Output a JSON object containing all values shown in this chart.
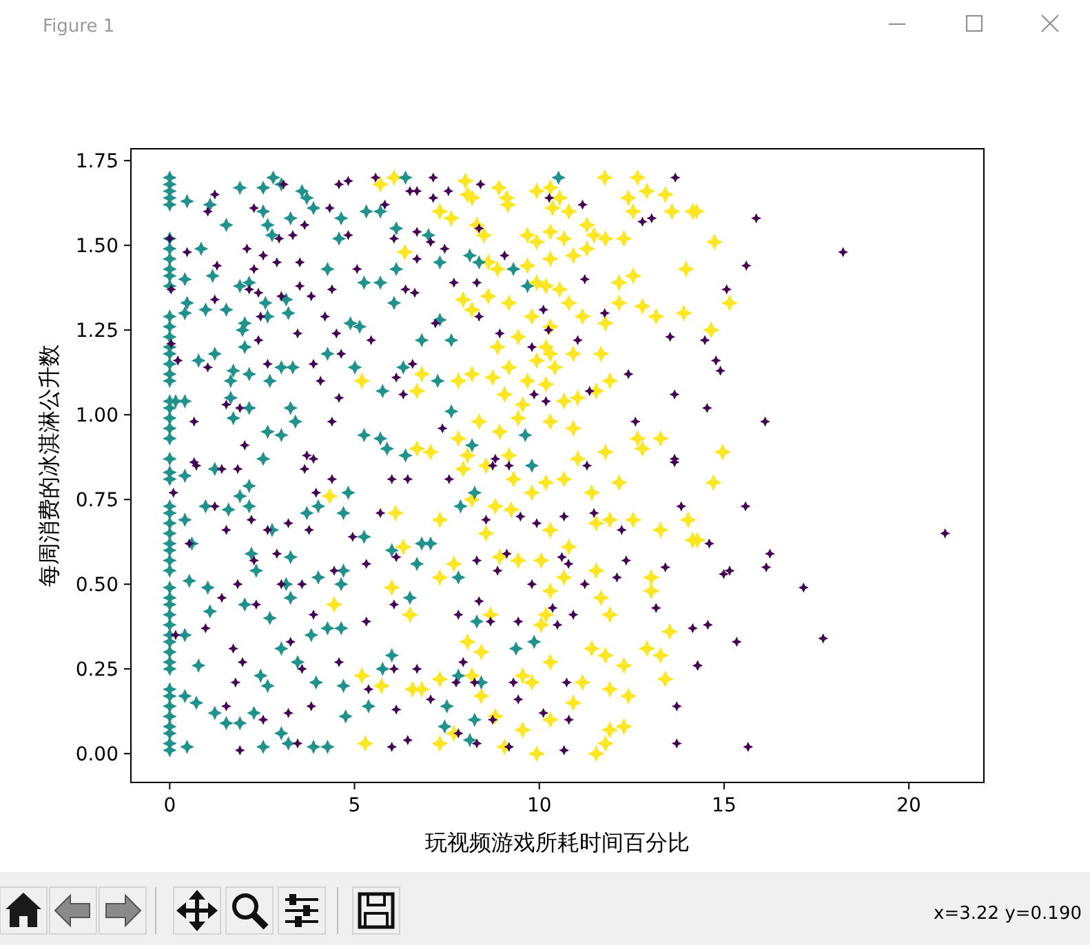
{
  "chart_data": {
    "type": "scatter",
    "xlabel": "玩视频游戏所耗时间百分比",
    "ylabel": "每周消费的冰淇淋公升数",
    "marker": "star",
    "annotations": [
      "Figure 1",
      "x=3.22 y=0.190"
    ],
    "xlim": [
      -1.05,
      22.03
    ],
    "ylim": [
      -0.085,
      1.785
    ],
    "xticks": [
      0,
      5,
      10,
      15,
      20
    ],
    "yticks": [
      {
        "value": 0,
        "label": "0.00"
      },
      {
        "value": 0.25,
        "label": "0.25"
      },
      {
        "value": 0.5,
        "label": "0.50"
      },
      {
        "value": 0.75,
        "label": "0.75"
      },
      {
        "value": 1,
        "label": "1.00"
      },
      {
        "value": 1.25,
        "label": "1.25"
      },
      {
        "value": 1.5,
        "label": "1.50"
      },
      {
        "value": 1.75,
        "label": "1.75"
      }
    ],
    "series": [
      {
        "color": "#fde725",
        "x": [
          8.0,
          8.06,
          8.91,
          9.12,
          9.15,
          9.93,
          10.3,
          10.55,
          10.36,
          10.8,
          11.77,
          12.66,
          12.91,
          12.41,
          13.41,
          13.59,
          14.15,
          12.54,
          7.31,
          7.62,
          8.18,
          8.31,
          8.5,
          9.68,
          9.93,
          10.3,
          10.67,
          11.29,
          11.48,
          11.79,
          12.29,
          11.29,
          10.92,
          10.3,
          9.68,
          8.87,
          8.62,
          13.97,
          12.16,
          12.54,
          9.93,
          10.18,
          8.62,
          9.18,
          7.94,
          8.18,
          10.55,
          10.8,
          11.17,
          11.79,
          12.16,
          12.79,
          13.16,
          13.91,
          10.3,
          9.8,
          8.87,
          9.43,
          10.18,
          10.3,
          10.42,
          9.93,
          10.92,
          11.67,
          8.74,
          9.18,
          7.81,
          8.18,
          6.82,
          6.69,
          9.68,
          10.18,
          11.91,
          11.54,
          9.55,
          10.67,
          11.04,
          9.06,
          8.37,
          8.93,
          9.43,
          10.3,
          10.92,
          12.66,
          13.28,
          7.81,
          7.06,
          8.06,
          9.18,
          11.79,
          12.79,
          11.04,
          7.94,
          8.56,
          9.3,
          10.18,
          10.67,
          11.42,
          12.16,
          7.31,
          8.18,
          8.81,
          9.24,
          9.8,
          10.3,
          10.8,
          11.54,
          11.91,
          12.54,
          13.28,
          14.03,
          14.15,
          8.56,
          7.69,
          7.31,
          8.93,
          9.43,
          10.05,
          10.67,
          10.3,
          11.54,
          13.03,
          13.03,
          8.68,
          10.18,
          11.67,
          11.91,
          13.53,
          8.06,
          8.43,
          10.05,
          10.3,
          11.42,
          11.79,
          12.29,
          12.91,
          13.28,
          7.31,
          8.18,
          9.55,
          9.8,
          11.17,
          11.91,
          12.41,
          13.41,
          6.82,
          8.43,
          8.81,
          10.92,
          10.3,
          9.55,
          11.91,
          12.29,
          7.69,
          7.31,
          9.06,
          9.93,
          11.54,
          11.79,
          5.7,
          6.07,
          6.36,
          5.2,
          6.69,
          4.33,
          6.11,
          6.01,
          4.45,
          6.5,
          5.2,
          5.73,
          6.57,
          5.29,
          6.32,
          14.25,
          14.74,
          15.15,
          14.65,
          14.96,
          14.71,
          14.28
        ],
        "values": [
          1.69,
          1.65,
          1.67,
          1.64,
          1.62,
          1.66,
          1.67,
          1.64,
          1.61,
          1.6,
          1.7,
          1.7,
          1.66,
          1.64,
          1.65,
          1.6,
          1.6,
          1.6,
          1.6,
          1.58,
          1.64,
          1.56,
          1.53,
          1.53,
          1.51,
          1.54,
          1.52,
          1.56,
          1.53,
          1.52,
          1.52,
          1.49,
          1.47,
          1.46,
          1.44,
          1.43,
          1.45,
          1.43,
          1.39,
          1.41,
          1.39,
          1.38,
          1.35,
          1.33,
          1.34,
          1.31,
          1.37,
          1.33,
          1.29,
          1.27,
          1.33,
          1.32,
          1.29,
          1.3,
          1.26,
          1.29,
          1.2,
          1.23,
          1.2,
          1.18,
          1.14,
          1.16,
          1.18,
          1.18,
          1.11,
          1.14,
          1.1,
          1.12,
          1.12,
          1.07,
          1.1,
          1.09,
          1.1,
          1.07,
          1.03,
          1.04,
          1.05,
          1.06,
          0.98,
          0.95,
          0.99,
          0.98,
          0.96,
          0.93,
          0.93,
          0.93,
          0.89,
          0.88,
          0.88,
          0.89,
          0.9,
          0.87,
          0.84,
          0.85,
          0.81,
          0.8,
          0.81,
          0.77,
          0.8,
          0.69,
          0.75,
          0.73,
          0.72,
          0.77,
          0.66,
          0.61,
          0.68,
          0.69,
          0.69,
          0.66,
          0.69,
          0.63,
          0.65,
          0.56,
          0.52,
          0.58,
          0.57,
          0.57,
          0.52,
          0.48,
          0.54,
          0.52,
          0.48,
          0.41,
          0.41,
          0.46,
          0.41,
          0.36,
          0.33,
          0.3,
          0.38,
          0.27,
          0.31,
          0.29,
          0.26,
          0.31,
          0.29,
          0.22,
          0.23,
          0.23,
          0.21,
          0.21,
          0.19,
          0.17,
          0.22,
          0.19,
          0.17,
          0.11,
          0.15,
          0.1,
          0.07,
          0.07,
          0.08,
          0.06,
          0.03,
          0.02,
          0.0,
          0.0,
          0.03,
          1.68,
          1.7,
          1.48,
          1.1,
          0.9,
          0.76,
          0.71,
          0.49,
          0.44,
          0.41,
          0.23,
          0.2,
          0.19,
          0.03,
          0.61,
          1.6,
          1.51,
          1.33,
          1.25,
          0.89,
          0.8,
          0.63
        ]
      },
      {
        "color": "#21918c",
        "x": [
          0,
          0,
          0,
          0,
          0,
          0,
          0,
          0,
          0,
          0,
          0,
          0,
          0,
          0,
          0,
          0,
          0,
          0,
          0,
          0,
          0,
          0,
          0,
          0,
          0,
          0,
          0,
          0,
          0,
          0,
          0,
          0,
          0,
          0,
          0,
          0,
          0,
          0,
          0,
          0,
          0,
          0,
          0,
          0,
          0,
          0,
          0,
          0,
          0,
          0,
          0,
          0,
          0,
          1.9,
          2.53,
          2.8,
          3.02,
          3.58,
          3.71,
          0.47,
          1.09,
          1.53,
          2.53,
          2.65,
          2.77,
          3.27,
          3.89,
          4.64,
          4.58,
          5.32,
          5.7,
          6.13,
          6.38,
          0.85,
          1.16,
          0.41,
          1.9,
          2.15,
          2.59,
          3.15,
          3.21,
          4.27,
          5.26,
          5.7,
          6.13,
          6.07,
          0.47,
          0.41,
          0.97,
          1.53,
          2.03,
          1.97,
          2.65,
          4.89,
          5.14,
          4.27,
          1.22,
          0.78,
          1.72,
          2.15,
          2.03,
          3.02,
          3.33,
          2.71,
          1.65,
          5.01,
          5.76,
          6.32,
          1.65,
          1.72,
          2.15,
          3.27,
          3.4,
          2.65,
          3.02,
          5.26,
          5.7,
          5.88,
          6.38,
          2.53,
          0.16,
          0.41,
          0.41,
          1.22,
          2.15,
          1.9,
          0.97,
          1.59,
          0.41,
          2.15,
          2.77,
          3.71,
          4.02,
          4.83,
          4.7,
          5.26,
          3.27,
          2.21,
          2.34,
          0.6,
          0.53,
          1.03,
          3.15,
          4.02,
          4.7,
          4.64,
          2.03,
          2.71,
          1.09,
          0.41,
          3.27,
          3.02,
          3.83,
          4.27,
          4.64,
          3.46,
          3.96,
          4.7,
          0.78,
          2.46,
          2.65,
          0.41,
          0.72,
          1.22,
          1.53,
          2.28,
          3.02,
          3.21,
          2.53,
          3.89,
          4.27,
          0.47,
          1.9,
          4.76,
          5.38,
          5.76,
          6.01,
          6.5,
          6.01,
          9.8,
          7.87,
          8.25,
          6.82,
          7.06,
          6.69,
          7.81,
          8.31,
          9.37,
          9.86,
          7.81,
          8.43,
          7.5,
          7.44,
          8.25,
          8.12,
          10.52,
          8.12,
          7.31,
          7.0,
          8.37,
          9.3,
          9.68,
          7.31,
          6.82,
          7.62,
          7.25,
          7.62,
          9.62,
          8.18
        ],
        "values": [
          1.7,
          1.68,
          1.66,
          1.64,
          1.62,
          1.52,
          1.49,
          1.46,
          1.43,
          1.41,
          1.38,
          1.29,
          1.26,
          1.23,
          1.2,
          1.18,
          1.15,
          1.12,
          1.1,
          1.04,
          1.02,
          0.99,
          0.96,
          0.93,
          0.87,
          0.83,
          0.81,
          0.73,
          0.71,
          0.68,
          0.65,
          0.62,
          0.6,
          0.57,
          0.54,
          0.49,
          0.46,
          0.44,
          0.41,
          0.38,
          0.35,
          0.33,
          0.3,
          0.27,
          0.25,
          0.19,
          0.17,
          0.14,
          0.11,
          0.08,
          0.06,
          0.03,
          0.01,
          1.67,
          1.67,
          1.7,
          1.68,
          1.66,
          1.64,
          1.63,
          1.62,
          1.56,
          1.6,
          1.56,
          1.53,
          1.58,
          1.61,
          1.58,
          1.52,
          1.6,
          1.6,
          1.55,
          1.7,
          1.49,
          1.41,
          1.4,
          1.38,
          1.39,
          1.33,
          1.34,
          1.3,
          1.43,
          1.39,
          1.39,
          1.43,
          1.33,
          1.33,
          1.3,
          1.31,
          1.31,
          1.27,
          1.25,
          1.29,
          1.27,
          1.26,
          1.18,
          1.18,
          1.16,
          1.13,
          1.12,
          1.2,
          1.14,
          1.14,
          1.1,
          1.1,
          1.14,
          1.07,
          1.14,
          1.05,
          0.99,
          1.02,
          1.02,
          0.98,
          0.95,
          0.94,
          0.94,
          0.93,
          0.9,
          0.88,
          0.87,
          1.04,
          1.04,
          0.82,
          0.84,
          0.79,
          0.76,
          0.73,
          0.72,
          0.69,
          0.73,
          0.66,
          0.71,
          0.73,
          0.77,
          0.71,
          0.64,
          0.58,
          0.59,
          0.54,
          0.62,
          0.51,
          0.49,
          0.5,
          0.52,
          0.54,
          0.5,
          0.44,
          0.4,
          0.42,
          0.35,
          0.46,
          0.31,
          0.35,
          0.37,
          0.37,
          0.27,
          0.21,
          0.2,
          0.26,
          0.23,
          0.2,
          0.17,
          0.15,
          0.12,
          0.09,
          0.12,
          0.06,
          0.03,
          0.02,
          0.02,
          0.02,
          0.02,
          0.09,
          0.11,
          0.14,
          0.25,
          0.29,
          0.46,
          0.6,
          0.85,
          0.73,
          0.77,
          0.62,
          0.62,
          0.56,
          0.52,
          0.39,
          0.31,
          0.33,
          0.23,
          0.21,
          0.14,
          0.08,
          0.1,
          0.04,
          1.7,
          1.47,
          1.45,
          1.53,
          1.45,
          1.43,
          1.38,
          1.28,
          1.22,
          1.22,
          1.1,
          1.01,
          0.94,
          0.91
        ]
      },
      {
        "color": "#440154",
        "x": [
          3.08,
          4.58,
          4.83,
          5.57,
          1.22,
          1.03,
          2.28,
          4.33,
          5.82,
          6.5,
          3.65,
          2.96,
          3.33,
          4.83,
          6.07,
          0,
          0.47,
          2.09,
          2.53,
          1.28,
          2.28,
          2.9,
          3.52,
          5.07,
          0.04,
          2.15,
          2.4,
          3.52,
          3.83,
          4.39,
          6.38,
          1.22,
          3.02,
          2.46,
          4.2,
          3.46,
          4.51,
          5.45,
          0.04,
          0.22,
          2.4,
          2.65,
          3.89,
          4.64,
          6.13,
          6.57,
          1.03,
          4.08,
          1.53,
          1.9,
          0.66,
          4.39,
          4.58,
          6.32,
          2.03,
          3.71,
          3.89,
          0.66,
          0.72,
          1.41,
          1.84,
          3.65,
          4.39,
          6.01,
          6.44,
          0.1,
          3.96,
          5.7,
          1.22,
          2.21,
          3.21,
          2.65,
          1.53,
          3.77,
          4.95,
          0.53,
          2.9,
          6.13,
          2.28,
          4.45,
          5.32,
          1.84,
          3.02,
          3.58,
          1.41,
          2.34,
          3.89,
          5.32,
          6.07,
          0.97,
          0.16,
          1.72,
          3.27,
          1.97,
          3.58,
          4.58,
          1.78,
          6.07,
          5.38,
          1.53,
          2.53,
          3.21,
          3.83,
          6.13,
          1.9,
          3.46,
          6.01,
          6.44,
          7.13,
          8.41,
          7.13,
          7.54,
          6.69,
          10.27,
          11.17,
          12.79,
          13.04,
          13.68,
          8.37,
          6.69,
          7.06,
          7.44,
          6.69,
          9.06,
          11.23,
          7.69,
          8.31,
          6.63,
          8.37,
          10.11,
          11.77,
          13.54,
          7.19,
          8.93,
          9.8,
          10.25,
          11.04,
          12.41,
          11.36,
          13.66,
          10.18,
          9.86,
          7.38,
          12.6,
          8.81,
          13.66,
          7.56,
          8.74,
          9.18,
          11.29,
          13.66,
          8.56,
          9.49,
          9.93,
          10.67,
          11.48,
          12.23,
          13.84,
          9.12,
          8.31,
          8.87,
          10.61,
          10.79,
          11.23,
          9.8,
          12.35,
          13.41,
          12.1,
          8.37,
          7.81,
          10.36,
          9.43,
          10.92,
          13.16,
          14.15,
          14.28,
          8.68,
          10.49,
          7.94,
          6.69,
          7.75,
          8.25,
          9.3,
          10.74,
          7.06,
          9.43,
          10.11,
          8.74,
          10.8,
          13.72,
          7.81,
          8.31,
          10.67,
          13.72,
          9.18,
          15.87,
          18.22,
          15.6,
          15.07,
          14.48,
          14.78,
          14.9,
          14.54,
          16.11,
          15.58,
          20.98,
          14.6,
          16.24,
          16.14,
          15.15,
          14.99,
          17.15,
          14.56,
          15.34,
          17.68,
          14.29,
          15.65
        ],
        "values": [
          1.68,
          1.68,
          1.69,
          1.7,
          1.65,
          1.6,
          1.61,
          1.61,
          1.62,
          1.66,
          1.56,
          1.52,
          1.53,
          1.53,
          1.52,
          1.52,
          1.48,
          1.49,
          1.47,
          1.44,
          1.43,
          1.45,
          1.45,
          1.43,
          1.37,
          1.37,
          1.36,
          1.38,
          1.35,
          1.37,
          1.37,
          1.34,
          1.35,
          1.29,
          1.29,
          1.24,
          1.24,
          1.22,
          1.21,
          1.16,
          1.22,
          1.15,
          1.15,
          1.18,
          1.11,
          1.15,
          1.14,
          1.1,
          1.03,
          1.02,
          0.98,
          0.98,
          1.05,
          1.06,
          0.91,
          0.88,
          0.87,
          0.86,
          0.85,
          0.84,
          0.84,
          0.84,
          0.81,
          0.81,
          0.81,
          0.77,
          0.77,
          0.71,
          0.73,
          0.69,
          0.68,
          0.66,
          0.66,
          0.66,
          0.64,
          0.62,
          0.59,
          0.58,
          0.57,
          0.54,
          0.56,
          0.5,
          0.5,
          0.5,
          0.46,
          0.44,
          0.41,
          0.39,
          0.44,
          0.37,
          0.35,
          0.31,
          0.33,
          0.27,
          0.25,
          0.27,
          0.21,
          0.25,
          0.19,
          0.14,
          0.1,
          0.12,
          0.14,
          0.13,
          0.01,
          0.03,
          0.02,
          0.04,
          1.7,
          1.68,
          1.64,
          1.66,
          1.66,
          1.64,
          1.62,
          1.57,
          1.58,
          1.7,
          1.55,
          1.54,
          1.51,
          1.49,
          1.46,
          1.47,
          1.4,
          1.39,
          1.39,
          1.36,
          1.29,
          1.31,
          1.3,
          1.23,
          1.27,
          1.24,
          1.2,
          1.25,
          1.22,
          1.12,
          1.07,
          1.06,
          1.04,
          1.06,
          0.96,
          0.98,
          0.87,
          0.87,
          0.81,
          0.85,
          0.85,
          0.85,
          0.86,
          0.69,
          0.7,
          0.68,
          0.7,
          0.71,
          0.66,
          0.73,
          0.59,
          0.57,
          0.54,
          0.58,
          0.56,
          0.5,
          0.5,
          0.57,
          0.55,
          0.52,
          0.45,
          0.41,
          0.43,
          0.39,
          0.41,
          0.43,
          0.37,
          0.26,
          0.39,
          0.38,
          0.27,
          0.25,
          0.21,
          0.21,
          0.21,
          0.21,
          0.16,
          0.16,
          0.12,
          0.1,
          0.1,
          0.14,
          0.06,
          0.03,
          0.01,
          0.03,
          0.02,
          1.58,
          1.48,
          1.44,
          1.37,
          1.22,
          1.16,
          1.13,
          1.02,
          0.98,
          0.73,
          0.65,
          0.62,
          0.59,
          0.55,
          0.54,
          0.53,
          0.49,
          0.38,
          0.33,
          0.34,
          0.26,
          0.02
        ]
      }
    ]
  }
}
